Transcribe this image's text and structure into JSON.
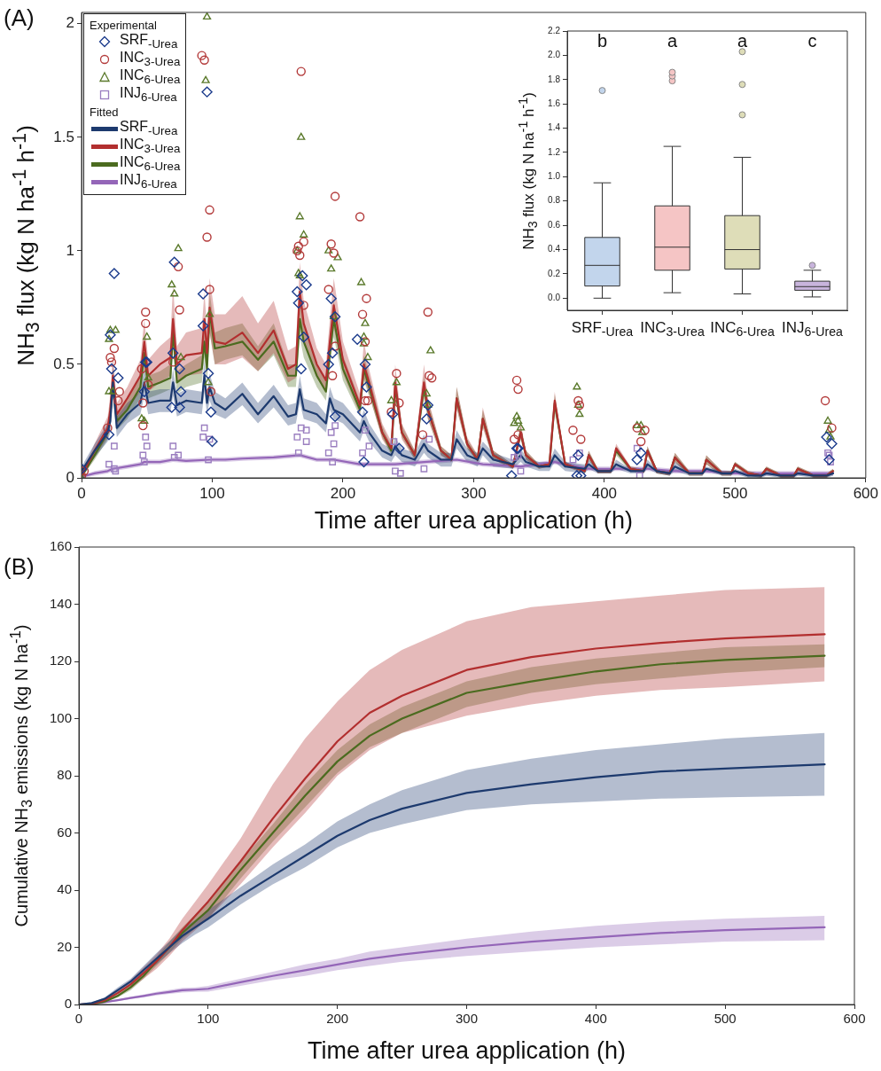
{
  "chart_data": [
    {
      "type": "line",
      "xlabel": "Time after urea application (h)",
      "ylabel": "NH$_{3}$ flux (kg N ha$^{-1}$ h$^{-1}$)",
      "xlim": [
        0,
        600
      ],
      "xticks": [
        0,
        100,
        200,
        300,
        400,
        500,
        600
      ],
      "ylim": [
        0,
        2.05
      ],
      "yticks": [
        0,
        0.5,
        1,
        1.5,
        2
      ],
      "legend": "top left",
      "legend_title": "Experimental",
      "annotations": [
        "(A)",
        "Fitted"
      ],
      "series": [
        {
          "name": "SRF$_{-Urea}$",
          "type": "scatter",
          "marker": "diamond",
          "color": "#1b3b8c",
          "x": [
            0,
            21,
            22,
            23,
            25,
            28,
            48,
            49,
            50,
            69,
            70,
            71,
            75,
            75,
            76,
            93,
            93,
            96,
            97,
            99,
            100,
            165,
            166,
            168,
            169,
            170,
            172,
            189,
            191,
            192,
            194,
            194,
            211,
            215,
            216,
            217,
            218,
            238,
            243,
            264,
            265,
            329,
            333,
            334,
            379,
            380,
            382,
            425,
            428,
            570,
            572,
            574
          ],
          "values": [
            0.04,
            0.19,
            0.63,
            0.48,
            0.9,
            0.44,
            0.38,
            0.51,
            0.51,
            0.31,
            0.55,
            0.95,
            0.48,
            0.31,
            0.38,
            0.67,
            0.81,
            1.7,
            0.46,
            0.29,
            0.16,
            0.82,
            0.77,
            0.48,
            0.89,
            0.62,
            0.85,
            0.5,
            0.79,
            0.55,
            0.71,
            0.27,
            0.61,
            0.29,
            0.07,
            0.5,
            0.4,
            0.28,
            0.13,
            0.26,
            0.32,
            0.01,
            0.13,
            0.13,
            0.01,
            0.1,
            0.01,
            0.08,
            0.11,
            0.18,
            0.08,
            0.15
          ]
        },
        {
          "name": "INC$_{3-Urea}$",
          "type": "scatter",
          "marker": "circle",
          "color": "#b33a3a",
          "x": [
            0,
            2,
            20,
            22,
            23,
            25,
            28,
            29,
            46,
            47,
            47,
            49,
            49,
            51,
            70,
            74,
            75,
            92,
            94,
            96,
            98,
            98,
            99,
            165,
            166,
            167,
            168,
            170,
            170,
            189,
            191,
            192,
            193,
            194,
            194,
            213,
            215,
            217,
            217,
            218,
            219,
            237,
            241,
            243,
            261,
            265,
            266,
            268,
            331,
            333,
            334,
            334,
            376,
            380,
            381,
            382,
            425,
            428,
            431,
            569,
            574
          ],
          "values": [
            0.01,
            0.03,
            0.22,
            0.53,
            0.51,
            0.57,
            0.34,
            0.38,
            0.48,
            0.33,
            0.23,
            0.73,
            0.68,
            0.41,
            0.51,
            0.93,
            0.74,
            1.86,
            1.84,
            1.06,
            1.18,
            0.83,
            0.38,
            1.0,
            1.02,
            0.98,
            1.79,
            1.04,
            0.76,
            0.83,
            1.03,
            0.45,
            0.99,
            1.24,
            0.58,
            1.15,
            0.72,
            0.6,
            0.34,
            0.79,
            0.34,
            0.29,
            0.46,
            0.33,
            0.19,
            0.73,
            0.45,
            0.44,
            0.17,
            0.43,
            0.39,
            0.19,
            0.21,
            0.34,
            0.32,
            0.17,
            0.22,
            0.16,
            0.21,
            0.34,
            0.22
          ]
        },
        {
          "name": "INC$_{6-Urea}$",
          "type": "scatter",
          "marker": "triangle",
          "color": "#5b7a2c",
          "x": [
            0,
            21,
            22,
            26,
            21,
            24,
            46,
            48,
            50,
            51,
            69,
            71,
            74,
            76,
            95,
            96,
            97,
            98,
            165,
            166,
            167,
            167,
            168,
            170,
            189,
            191,
            193,
            196,
            214,
            216,
            216,
            217,
            219,
            237,
            241,
            264,
            265,
            267,
            331,
            333,
            334,
            336,
            379,
            380,
            381,
            425,
            428,
            429,
            571,
            572,
            573
          ],
          "values": [
            0,
            0.61,
            0.65,
            0.65,
            0.38,
            0.38,
            0.26,
            0.25,
            0.62,
            0.44,
            0.85,
            0.81,
            1.01,
            0.53,
            1.75,
            2.03,
            0.42,
            0.72,
            1.0,
            0.9,
            1.15,
            0.89,
            1.5,
            1.07,
            1.0,
            0.92,
            0.71,
            0.97,
            0.86,
            0.62,
            0.59,
            0.68,
            0.53,
            0.34,
            0.42,
            0.37,
            0.32,
            0.56,
            0.24,
            0.27,
            0.25,
            0.22,
            0.4,
            0.32,
            0.28,
            0.23,
            0.23,
            0.2,
            0.25,
            0.21,
            0.18
          ]
        },
        {
          "name": "INJ$_{6-Urea}$",
          "type": "scatter",
          "marker": "square",
          "color": "#9b7fc0",
          "x": [
            21,
            25,
            25,
            26,
            47,
            49,
            50,
            48,
            70,
            74,
            71,
            94,
            93,
            98,
            97,
            165,
            168,
            172,
            172,
            166,
            191,
            194,
            193,
            189,
            192,
            215,
            217,
            220,
            239,
            240,
            244,
            266,
            262,
            331,
            334,
            336,
            376,
            381,
            425,
            427,
            571,
            572,
            573
          ],
          "values": [
            0.06,
            0.14,
            0.04,
            0.03,
            0.1,
            0.18,
            0.14,
            0.07,
            0.14,
            0.1,
            0.09,
            0.22,
            0.18,
            0.17,
            0.08,
            0.18,
            0.22,
            0.21,
            0.16,
            0.11,
            0.2,
            0.23,
            0.15,
            0.11,
            0.07,
            0.11,
            0.21,
            0.14,
            0.16,
            0.03,
            0.02,
            0.17,
            0.04,
            0.09,
            0.1,
            0.03,
            0.08,
            0.11,
            0.13,
            0.01,
            0.11,
            0.1,
            0.07
          ]
        },
        {
          "name": "SRF$_{-Urea}$",
          "type": "line",
          "color": "#1d3a6e",
          "x": [
            0,
            10,
            20,
            22,
            24,
            27,
            35,
            45,
            48,
            51,
            60,
            68,
            70,
            73,
            80,
            92,
            94,
            96,
            98,
            102,
            110,
            123,
            135,
            147,
            158,
            164,
            167,
            170,
            180,
            187,
            190,
            193,
            200,
            213,
            216,
            220,
            230,
            237,
            240,
            245,
            255,
            262,
            265,
            275,
            283,
            287,
            295,
            303,
            307,
            315,
            330,
            336,
            340,
            350,
            358,
            362,
            370,
            385,
            388,
            395,
            405,
            409,
            420,
            430,
            433,
            440,
            450,
            454,
            465,
            475,
            478,
            490,
            497,
            500,
            510,
            520,
            524,
            535,
            545,
            548,
            560,
            570,
            575
          ],
          "values": [
            0.03,
            0.12,
            0.2,
            0.25,
            0.42,
            0.22,
            0.28,
            0.33,
            0.42,
            0.33,
            0.34,
            0.34,
            0.42,
            0.32,
            0.34,
            0.33,
            0.45,
            0.33,
            0.4,
            0.33,
            0.3,
            0.37,
            0.28,
            0.36,
            0.27,
            0.28,
            0.39,
            0.3,
            0.28,
            0.24,
            0.35,
            0.3,
            0.28,
            0.2,
            0.25,
            0.2,
            0.12,
            0.1,
            0.14,
            0.1,
            0.08,
            0.15,
            0.12,
            0.08,
            0.08,
            0.17,
            0.1,
            0.08,
            0.13,
            0.08,
            0.06,
            0.1,
            0.07,
            0.05,
            0.05,
            0.1,
            0.05,
            0.04,
            0.06,
            0.03,
            0.03,
            0.06,
            0.03,
            0.03,
            0.06,
            0.03,
            0.02,
            0.05,
            0.02,
            0.02,
            0.04,
            0.02,
            0.02,
            0.03,
            0.01,
            0.01,
            0.02,
            0.01,
            0.01,
            0.02,
            0.01,
            0.01,
            0.02
          ],
          "lower": [
            0.01,
            0.09,
            0.16,
            0.2,
            0.35,
            0.18,
            0.24,
            0.28,
            0.36,
            0.28,
            0.29,
            0.29,
            0.36,
            0.27,
            0.29,
            0.28,
            0.38,
            0.28,
            0.34,
            0.28,
            0.26,
            0.32,
            0.24,
            0.31,
            0.23,
            0.24,
            0.33,
            0.26,
            0.24,
            0.2,
            0.3,
            0.26,
            0.24,
            0.16,
            0.21,
            0.16,
            0.09,
            0.07,
            0.1,
            0.07,
            0.05,
            0.11,
            0.09,
            0.05,
            0.05,
            0.13,
            0.07,
            0.05,
            0.1,
            0.05,
            0.04,
            0.07,
            0.05,
            0.03,
            0.03,
            0.07,
            0.03,
            0.02,
            0.04,
            0.02,
            0.02,
            0.04,
            0.02,
            0.02,
            0.04,
            0.02,
            0.01,
            0.03,
            0.01,
            0.01,
            0.03,
            0.01,
            0.01,
            0.02,
            0,
            0,
            0.01,
            0,
            0,
            0.01,
            0,
            0,
            0.01
          ],
          "upper": [
            0.05,
            0.15,
            0.24,
            0.3,
            0.5,
            0.27,
            0.33,
            0.38,
            0.48,
            0.38,
            0.39,
            0.39,
            0.48,
            0.37,
            0.39,
            0.38,
            0.52,
            0.38,
            0.46,
            0.38,
            0.35,
            0.42,
            0.33,
            0.41,
            0.32,
            0.33,
            0.45,
            0.35,
            0.33,
            0.28,
            0.4,
            0.35,
            0.33,
            0.24,
            0.3,
            0.24,
            0.15,
            0.13,
            0.18,
            0.13,
            0.11,
            0.19,
            0.15,
            0.11,
            0.11,
            0.21,
            0.13,
            0.11,
            0.16,
            0.11,
            0.08,
            0.13,
            0.09,
            0.07,
            0.07,
            0.13,
            0.07,
            0.06,
            0.08,
            0.04,
            0.04,
            0.08,
            0.04,
            0.04,
            0.08,
            0.04,
            0.03,
            0.07,
            0.03,
            0.03,
            0.05,
            0.03,
            0.03,
            0.04,
            0.02,
            0.02,
            0.03,
            0.02,
            0.02,
            0.03,
            0.02,
            0.02,
            0.03
          ]
        },
        {
          "name": "INC$_{3-Urea}$",
          "type": "line",
          "color": "#b22f2f",
          "x": [
            0,
            10,
            20,
            22,
            24,
            27,
            35,
            45,
            48,
            51,
            60,
            68,
            70,
            73,
            80,
            92,
            94,
            96,
            98,
            102,
            110,
            123,
            135,
            147,
            158,
            164,
            167,
            170,
            180,
            187,
            190,
            193,
            200,
            213,
            216,
            220,
            230,
            237,
            240,
            245,
            255,
            262,
            265,
            275,
            283,
            287,
            295,
            303,
            307,
            315,
            330,
            336,
            340,
            350,
            358,
            362,
            370,
            385,
            388,
            395,
            405,
            409,
            420,
            430,
            433,
            440,
            450,
            454,
            465,
            475,
            478,
            490,
            497,
            500,
            510,
            520,
            524,
            535,
            545,
            548,
            560,
            570,
            575
          ],
          "values": [
            0.01,
            0.12,
            0.22,
            0.3,
            0.45,
            0.28,
            0.35,
            0.45,
            0.6,
            0.45,
            0.5,
            0.53,
            0.7,
            0.5,
            0.54,
            0.55,
            0.7,
            0.55,
            0.75,
            0.6,
            0.59,
            0.64,
            0.55,
            0.65,
            0.48,
            0.5,
            0.82,
            0.68,
            0.5,
            0.43,
            0.6,
            0.76,
            0.52,
            0.32,
            0.5,
            0.42,
            0.2,
            0.13,
            0.42,
            0.2,
            0.1,
            0.42,
            0.3,
            0.12,
            0.08,
            0.35,
            0.15,
            0.08,
            0.26,
            0.1,
            0.05,
            0.2,
            0.1,
            0.05,
            0.06,
            0.34,
            0.06,
            0.03,
            0.1,
            0.03,
            0.03,
            0.13,
            0.04,
            0.03,
            0.12,
            0.03,
            0.02,
            0.09,
            0.02,
            0.02,
            0.08,
            0.02,
            0.02,
            0.06,
            0.02,
            0.01,
            0.04,
            0.01,
            0.01,
            0.04,
            0.01,
            0.01,
            0.03
          ],
          "lower": [
            0,
            0.09,
            0.18,
            0.25,
            0.38,
            0.23,
            0.3,
            0.38,
            0.5,
            0.38,
            0.42,
            0.45,
            0.6,
            0.42,
            0.45,
            0.46,
            0.6,
            0.46,
            0.64,
            0.5,
            0.5,
            0.53,
            0.47,
            0.55,
            0.42,
            0.44,
            0.72,
            0.6,
            0.44,
            0.38,
            0.53,
            0.66,
            0.46,
            0.28,
            0.44,
            0.37,
            0.17,
            0.11,
            0.36,
            0.17,
            0.08,
            0.36,
            0.26,
            0.1,
            0.07,
            0.3,
            0.13,
            0.07,
            0.22,
            0.08,
            0.04,
            0.17,
            0.08,
            0.04,
            0.05,
            0.3,
            0.05,
            0.02,
            0.08,
            0.02,
            0.02,
            0.11,
            0.03,
            0.02,
            0.1,
            0.02,
            0.01,
            0.07,
            0.01,
            0.01,
            0.06,
            0.01,
            0.01,
            0.05,
            0.01,
            0,
            0.03,
            0,
            0,
            0.03,
            0,
            0,
            0.02
          ],
          "upper": [
            0.02,
            0.15,
            0.27,
            0.36,
            0.55,
            0.33,
            0.4,
            0.52,
            0.7,
            0.52,
            0.58,
            0.62,
            0.85,
            0.58,
            0.64,
            0.66,
            0.82,
            0.66,
            0.88,
            0.72,
            0.72,
            0.8,
            0.68,
            0.78,
            0.56,
            0.58,
            0.95,
            0.78,
            0.57,
            0.5,
            0.7,
            0.88,
            0.6,
            0.37,
            0.6,
            0.48,
            0.24,
            0.16,
            0.5,
            0.24,
            0.12,
            0.5,
            0.35,
            0.14,
            0.1,
            0.4,
            0.18,
            0.1,
            0.31,
            0.12,
            0.06,
            0.24,
            0.12,
            0.06,
            0.07,
            0.38,
            0.07,
            0.04,
            0.12,
            0.04,
            0.04,
            0.15,
            0.05,
            0.04,
            0.14,
            0.04,
            0.03,
            0.11,
            0.03,
            0.03,
            0.1,
            0.03,
            0.03,
            0.07,
            0.03,
            0.02,
            0.05,
            0.02,
            0.02,
            0.05,
            0.02,
            0.02,
            0.04
          ]
        },
        {
          "name": "INC$_{6-Urea}$",
          "type": "line",
          "color": "#4b6b1f",
          "x": [
            0,
            10,
            20,
            22,
            24,
            27,
            35,
            45,
            48,
            51,
            60,
            68,
            70,
            73,
            80,
            92,
            94,
            96,
            98,
            102,
            110,
            123,
            135,
            147,
            158,
            164,
            167,
            170,
            180,
            187,
            190,
            193,
            200,
            213,
            216,
            220,
            230,
            237,
            240,
            245,
            255,
            262,
            265,
            275,
            283,
            287,
            295,
            303,
            307,
            315,
            330,
            336,
            340,
            350,
            358,
            362,
            370,
            385,
            388,
            395,
            405,
            409,
            420,
            430,
            433,
            440,
            450,
            454,
            465,
            475,
            478,
            490,
            497,
            500,
            510,
            520,
            524,
            535,
            545,
            548,
            560,
            570,
            575
          ],
          "values": [
            0.005,
            0.1,
            0.2,
            0.28,
            0.42,
            0.25,
            0.3,
            0.4,
            0.55,
            0.4,
            0.42,
            0.44,
            0.65,
            0.42,
            0.45,
            0.48,
            0.6,
            0.48,
            0.73,
            0.57,
            0.58,
            0.6,
            0.52,
            0.6,
            0.45,
            0.45,
            0.7,
            0.6,
            0.45,
            0.38,
            0.55,
            0.7,
            0.48,
            0.3,
            0.48,
            0.4,
            0.2,
            0.12,
            0.4,
            0.2,
            0.1,
            0.4,
            0.3,
            0.12,
            0.08,
            0.35,
            0.15,
            0.08,
            0.26,
            0.1,
            0.05,
            0.2,
            0.1,
            0.05,
            0.06,
            0.33,
            0.06,
            0.03,
            0.1,
            0.03,
            0.03,
            0.12,
            0.04,
            0.03,
            0.12,
            0.03,
            0.02,
            0.09,
            0.02,
            0.02,
            0.08,
            0.02,
            0.02,
            0.06,
            0.02,
            0.01,
            0.04,
            0.01,
            0.01,
            0.04,
            0.01,
            0.01,
            0.03
          ],
          "lower": [
            0,
            0.08,
            0.17,
            0.24,
            0.36,
            0.21,
            0.26,
            0.35,
            0.48,
            0.35,
            0.37,
            0.39,
            0.57,
            0.37,
            0.4,
            0.42,
            0.53,
            0.42,
            0.64,
            0.5,
            0.52,
            0.54,
            0.47,
            0.54,
            0.4,
            0.4,
            0.62,
            0.53,
            0.4,
            0.34,
            0.49,
            0.62,
            0.43,
            0.27,
            0.43,
            0.36,
            0.18,
            0.1,
            0.35,
            0.18,
            0.08,
            0.35,
            0.26,
            0.1,
            0.07,
            0.31,
            0.13,
            0.07,
            0.23,
            0.08,
            0.04,
            0.17,
            0.08,
            0.04,
            0.05,
            0.29,
            0.05,
            0.02,
            0.08,
            0.02,
            0.02,
            0.1,
            0.03,
            0.02,
            0.1,
            0.02,
            0.01,
            0.07,
            0.01,
            0.01,
            0.06,
            0.01,
            0.01,
            0.05,
            0.01,
            0,
            0.03,
            0,
            0,
            0.03,
            0,
            0,
            0.02
          ],
          "upper": [
            0.01,
            0.12,
            0.23,
            0.32,
            0.48,
            0.29,
            0.34,
            0.45,
            0.62,
            0.45,
            0.47,
            0.5,
            0.73,
            0.47,
            0.5,
            0.54,
            0.67,
            0.54,
            0.82,
            0.64,
            0.66,
            0.68,
            0.58,
            0.68,
            0.5,
            0.5,
            0.78,
            0.67,
            0.5,
            0.43,
            0.62,
            0.78,
            0.54,
            0.34,
            0.54,
            0.45,
            0.23,
            0.14,
            0.45,
            0.23,
            0.12,
            0.45,
            0.34,
            0.14,
            0.1,
            0.4,
            0.17,
            0.1,
            0.3,
            0.12,
            0.06,
            0.23,
            0.12,
            0.06,
            0.07,
            0.37,
            0.07,
            0.04,
            0.12,
            0.04,
            0.04,
            0.14,
            0.05,
            0.04,
            0.14,
            0.04,
            0.03,
            0.11,
            0.03,
            0.03,
            0.1,
            0.03,
            0.03,
            0.07,
            0.03,
            0.02,
            0.05,
            0.02,
            0.02,
            0.05,
            0.02,
            0.02,
            0.04
          ]
        },
        {
          "name": "INJ$_{6-Urea}$",
          "type": "line",
          "color": "#9466b8",
          "x": [
            0,
            10,
            20,
            24,
            35,
            45,
            48,
            60,
            70,
            80,
            98,
            110,
            123,
            147,
            167,
            180,
            193,
            213,
            240,
            262,
            287,
            307,
            336,
            362,
            388,
            409,
            433,
            454,
            478,
            500,
            524,
            548,
            575
          ],
          "values": [
            0.005,
            0.02,
            0.03,
            0.04,
            0.05,
            0.06,
            0.07,
            0.07,
            0.08,
            0.075,
            0.08,
            0.08,
            0.085,
            0.09,
            0.1,
            0.08,
            0.08,
            0.06,
            0.06,
            0.07,
            0.08,
            0.06,
            0.05,
            0.07,
            0.04,
            0.04,
            0.04,
            0.03,
            0.03,
            0.02,
            0.02,
            0.02,
            0.02
          ],
          "lower": [
            0,
            0.01,
            0.02,
            0.03,
            0.04,
            0.05,
            0.06,
            0.06,
            0.07,
            0.065,
            0.07,
            0.07,
            0.075,
            0.08,
            0.09,
            0.07,
            0.07,
            0.05,
            0.05,
            0.06,
            0.07,
            0.05,
            0.04,
            0.06,
            0.03,
            0.03,
            0.03,
            0.02,
            0.02,
            0.01,
            0.01,
            0.01,
            0.01
          ],
          "upper": [
            0.01,
            0.03,
            0.04,
            0.05,
            0.06,
            0.07,
            0.08,
            0.08,
            0.09,
            0.085,
            0.09,
            0.09,
            0.095,
            0.1,
            0.11,
            0.09,
            0.09,
            0.07,
            0.07,
            0.08,
            0.09,
            0.07,
            0.06,
            0.08,
            0.05,
            0.05,
            0.05,
            0.04,
            0.04,
            0.03,
            0.03,
            0.03,
            0.03
          ]
        }
      ]
    },
    {
      "type": "box",
      "ylabel": "NH$_{3}$ flux (kg N ha$^{-1}$ h$^{-1}$)",
      "categories": [
        "SRF$_{-Urea}$",
        "INC$_{3-Urea}$",
        "INC$_{6-Urea}$",
        "INJ$_{6-Urea}$"
      ],
      "colors": [
        "#c2d5ec",
        "#f5c5c5",
        "#deddb8",
        "#c8b4dc"
      ],
      "ylim": [
        -0.1,
        2.2
      ],
      "yticks": [
        {
          "value": 0,
          "label": "0.0"
        },
        {
          "value": 0.2,
          "label": "0.2"
        },
        {
          "value": 0.4,
          "label": "0.4"
        },
        {
          "value": 0.6,
          "label": "0.6"
        },
        {
          "value": 0.8,
          "label": "0.8"
        },
        {
          "value": 1,
          "label": "1.0"
        },
        {
          "value": 1.2,
          "label": "1.2"
        },
        {
          "value": 1.4,
          "label": "1.4"
        },
        {
          "value": 1.6,
          "label": "1.6"
        },
        {
          "value": 1.8,
          "label": "1.8"
        },
        {
          "value": 2,
          "label": "2.0"
        },
        {
          "value": 2.2,
          "label": "2.2"
        }
      ],
      "annotations": [
        "b",
        "a",
        "a",
        "c"
      ],
      "boxes": [
        {
          "low": 0,
          "q1": 0.1,
          "median": 0.27,
          "q3": 0.5,
          "high": 0.95,
          "outliers": [
            1.71
          ]
        },
        {
          "low": 0.045,
          "q1": 0.23,
          "median": 0.42,
          "q3": 0.76,
          "high": 1.25,
          "outliers": [
            1.79,
            1.83,
            1.86
          ]
        },
        {
          "low": 0.035,
          "q1": 0.24,
          "median": 0.4,
          "q3": 0.68,
          "high": 1.16,
          "outliers": [
            1.51,
            1.76,
            2.03
          ]
        },
        {
          "low": 0.01,
          "q1": 0.065,
          "median": 0.095,
          "q3": 0.14,
          "high": 0.23,
          "outliers": [
            0.27
          ]
        }
      ]
    },
    {
      "type": "line",
      "xlabel": "Time after urea application (h)",
      "ylabel": "Cumulative NH$_{3}$ emissions (kg N ha$^{-1}$)",
      "xlim": [
        0,
        600
      ],
      "xticks": [
        0,
        100,
        200,
        300,
        400,
        500,
        600
      ],
      "ylim": [
        0,
        160
      ],
      "yticks": [
        0,
        20,
        40,
        60,
        80,
        100,
        120,
        140,
        160
      ],
      "annotations": [
        "(B)"
      ],
      "x": [
        0,
        10,
        20,
        30,
        40,
        50,
        60,
        70,
        80,
        90,
        100,
        125,
        150,
        175,
        200,
        225,
        250,
        300,
        350,
        400,
        450,
        500,
        577
      ],
      "series": [
        {
          "color": "#1d3a6e",
          "values": [
            0,
            0.5,
            2,
            5,
            8,
            12,
            16,
            20,
            24,
            27,
            30,
            38,
            45,
            52,
            59,
            64.5,
            68.5,
            74,
            77,
            79.5,
            81.5,
            82.5,
            84
          ],
          "lower": [
            0,
            0.3,
            1.5,
            4,
            7,
            10.5,
            14,
            18,
            21.5,
            24.5,
            27,
            35,
            42,
            48,
            55,
            60,
            63,
            68,
            70,
            71,
            72,
            72.5,
            73
          ],
          "upper": [
            0,
            0.7,
            2.5,
            6,
            9,
            13.5,
            18,
            22,
            26.5,
            29.5,
            33,
            41,
            49,
            56,
            64,
            70,
            75,
            82,
            86,
            89,
            91,
            93,
            95
          ]
        },
        {
          "color": "#b22f2f",
          "values": [
            0,
            0.2,
            1.5,
            4,
            7,
            11,
            15,
            20,
            26,
            31,
            36,
            50,
            65,
            79,
            92,
            102,
            108,
            117,
            121.5,
            124.5,
            126.5,
            128,
            129.5
          ],
          "lower": [
            0,
            0.1,
            1,
            3,
            5.5,
            9,
            12.5,
            17,
            22,
            26,
            30,
            42,
            55,
            67,
            80,
            89,
            95,
            101,
            105,
            108,
            110,
            111,
            113
          ],
          "upper": [
            0,
            0.3,
            2,
            5,
            8.5,
            13,
            17.5,
            23,
            30,
            36,
            42,
            58,
            77,
            93,
            106,
            117,
            124,
            134,
            139,
            141,
            143,
            145,
            146
          ]
        },
        {
          "color": "#4b6b1f",
          "values": [
            0,
            0.1,
            1,
            3,
            6,
            10,
            15,
            20,
            25,
            29,
            33,
            47,
            60,
            73,
            85,
            94,
            100,
            109,
            113,
            116.5,
            119,
            120.5,
            122
          ],
          "lower": [
            0,
            0.05,
            0.7,
            2.5,
            5,
            9,
            13.5,
            18,
            23,
            26.5,
            30,
            44,
            57,
            69,
            81,
            90,
            95,
            104,
            109,
            112,
            114,
            116,
            118
          ],
          "upper": [
            0,
            0.15,
            1.3,
            3.5,
            7,
            11,
            16.5,
            22,
            27,
            31.5,
            36,
            50,
            63,
            77,
            89,
            98,
            104,
            113,
            118,
            121,
            123,
            125,
            126
          ]
        },
        {
          "color": "#9466b8",
          "values": [
            0,
            0.2,
            0.8,
            1.5,
            2.3,
            3,
            3.8,
            4.4,
            5,
            5.2,
            5.5,
            7.8,
            10,
            12,
            14,
            16,
            17.5,
            20,
            22,
            23.5,
            25,
            26,
            27
          ],
          "lower": [
            0,
            0.1,
            0.6,
            1.2,
            1.9,
            2.5,
            3.2,
            3.7,
            4.2,
            4.4,
            4.5,
            6.5,
            8.5,
            10,
            12,
            13.5,
            15,
            17,
            18.5,
            20,
            21,
            22,
            22.5
          ],
          "upper": [
            0,
            0.3,
            1,
            1.8,
            2.7,
            3.5,
            4.4,
            5.1,
            5.8,
            6,
            6.5,
            9,
            11.5,
            14,
            16,
            18.5,
            20,
            23,
            25.5,
            27.5,
            29,
            30,
            31
          ]
        }
      ]
    }
  ]
}
